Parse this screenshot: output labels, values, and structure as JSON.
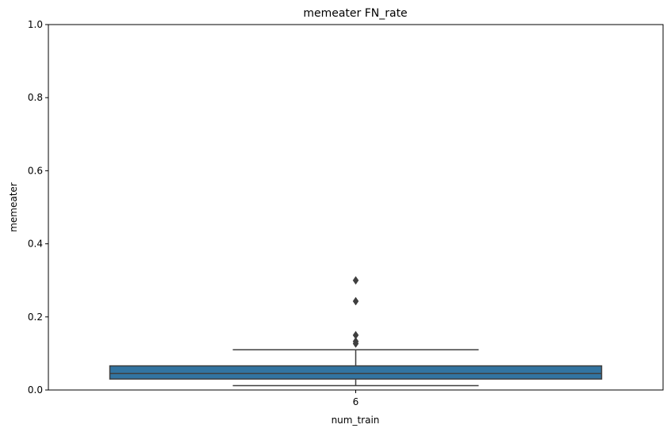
{
  "chart_data": {
    "type": "box",
    "title": "memeater FN_rate",
    "xlabel": "num_train",
    "ylabel": "memeater",
    "categories": [
      "6"
    ],
    "ylim": [
      0,
      1.0
    ],
    "yticks": [
      0.0,
      0.2,
      0.4,
      0.6,
      0.8,
      1.0
    ],
    "ytick_labels": [
      "0.0",
      "0.2",
      "0.4",
      "0.6",
      "0.8",
      "1.0"
    ],
    "grid": false,
    "boxes": [
      {
        "category": "6",
        "whisker_low": 0.012,
        "q1": 0.03,
        "median": 0.045,
        "q3": 0.066,
        "whisker_high": 0.11,
        "outliers": [
          0.3,
          0.243,
          0.15,
          0.133,
          0.127
        ]
      }
    ],
    "colors": {
      "box_fill": "#3274a1",
      "lines": "#3f3f3f",
      "axes": "#000000"
    }
  }
}
